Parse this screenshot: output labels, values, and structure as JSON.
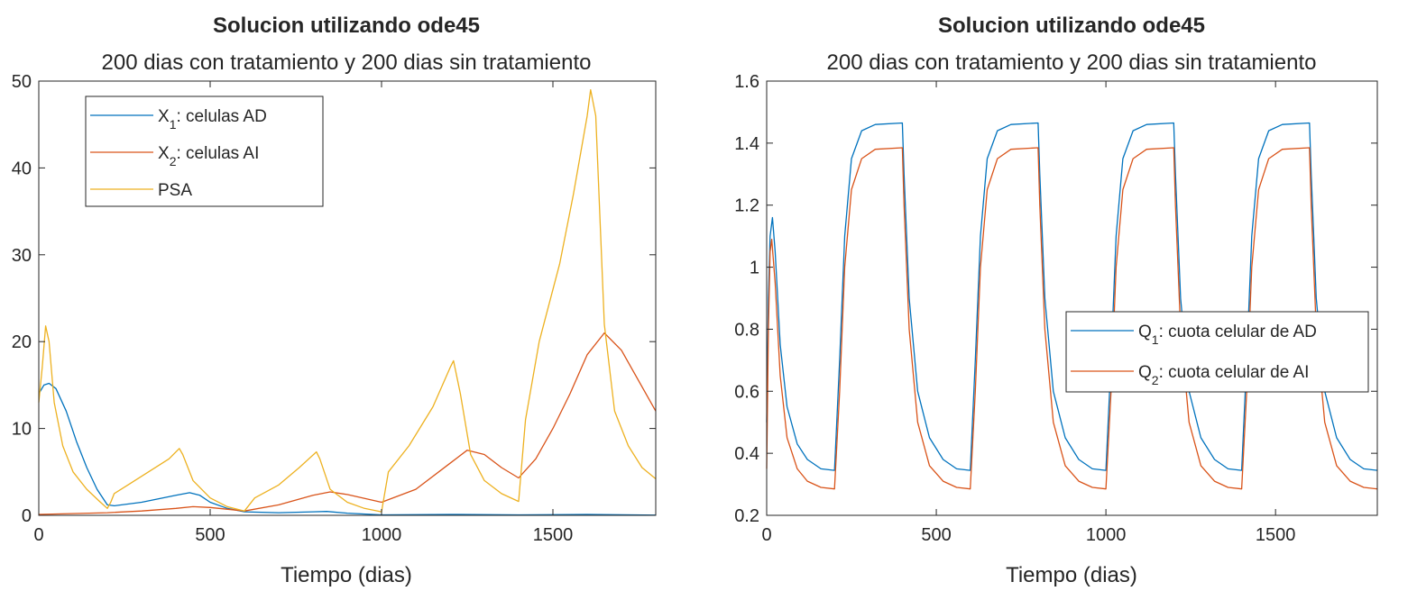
{
  "chart_data": [
    {
      "type": "line",
      "title": "Solucion utilizando ode45",
      "subtitle": "200 dias con tratamiento y 200 dias sin tratamiento",
      "xlabel": "Tiempo (dias)",
      "ylabel": "",
      "xlim": [
        0,
        1800
      ],
      "ylim": [
        0,
        50
      ],
      "xticks": [
        "0",
        "500",
        "1000",
        "1500"
      ],
      "yticks": [
        "0",
        "10",
        "20",
        "30",
        "40",
        "50"
      ],
      "grid": false,
      "legend_position": "top-left",
      "series": [
        {
          "legend_main": "X",
          "legend_sub": "1",
          "legend_rest": ": celulas AD",
          "color": "#0072BD",
          "points": [
            [
              0,
              14
            ],
            [
              15,
              15
            ],
            [
              30,
              15.2
            ],
            [
              50,
              14.6
            ],
            [
              80,
              12
            ],
            [
              110,
              8.5
            ],
            [
              140,
              5.5
            ],
            [
              170,
              3
            ],
            [
              200,
              1.2
            ],
            [
              220,
              1.1
            ],
            [
              300,
              1.5
            ],
            [
              400,
              2.3
            ],
            [
              440,
              2.6
            ],
            [
              470,
              2.3
            ],
            [
              500,
              1.5
            ],
            [
              550,
              0.8
            ],
            [
              600,
              0.4
            ],
            [
              700,
              0.3
            ],
            [
              800,
              0.4
            ],
            [
              840,
              0.45
            ],
            [
              900,
              0.25
            ],
            [
              1000,
              0.05
            ],
            [
              1200,
              0.1
            ],
            [
              1400,
              0.05
            ],
            [
              1600,
              0.1
            ],
            [
              1800,
              0.02
            ]
          ]
        },
        {
          "legend_main": "X",
          "legend_sub": "2",
          "legend_rest": ": celulas AI",
          "color": "#D95319",
          "points": [
            [
              0,
              0.1
            ],
            [
              200,
              0.3
            ],
            [
              300,
              0.5
            ],
            [
              400,
              0.8
            ],
            [
              450,
              1
            ],
            [
              500,
              0.9
            ],
            [
              600,
              0.5
            ],
            [
              700,
              1.2
            ],
            [
              800,
              2.3
            ],
            [
              850,
              2.7
            ],
            [
              900,
              2.4
            ],
            [
              1000,
              1.5
            ],
            [
              1100,
              3
            ],
            [
              1200,
              6
            ],
            [
              1250,
              7.5
            ],
            [
              1300,
              7
            ],
            [
              1350,
              5.5
            ],
            [
              1400,
              4.3
            ],
            [
              1450,
              6.5
            ],
            [
              1500,
              10
            ],
            [
              1550,
              14
            ],
            [
              1600,
              18.5
            ],
            [
              1650,
              21
            ],
            [
              1700,
              19
            ],
            [
              1750,
              15.5
            ],
            [
              1800,
              12
            ]
          ]
        },
        {
          "legend_main": "PSA",
          "legend_sub": "",
          "legend_rest": "",
          "color": "#EDB120",
          "points": [
            [
              0,
              13
            ],
            [
              10,
              17
            ],
            [
              20,
              21.8
            ],
            [
              30,
              20
            ],
            [
              45,
              13
            ],
            [
              70,
              8
            ],
            [
              100,
              5
            ],
            [
              140,
              3
            ],
            [
              180,
              1.5
            ],
            [
              200,
              0.8
            ],
            [
              210,
              1.5
            ],
            [
              220,
              2.5
            ],
            [
              260,
              3.5
            ],
            [
              320,
              5
            ],
            [
              380,
              6.5
            ],
            [
              410,
              7.7
            ],
            [
              420,
              7
            ],
            [
              450,
              4
            ],
            [
              500,
              2
            ],
            [
              550,
              1
            ],
            [
              600,
              0.5
            ],
            [
              630,
              2
            ],
            [
              700,
              3.5
            ],
            [
              760,
              5.5
            ],
            [
              810,
              7.3
            ],
            [
              820,
              6.5
            ],
            [
              850,
              3
            ],
            [
              900,
              1.5
            ],
            [
              950,
              0.8
            ],
            [
              1000,
              0.4
            ],
            [
              1020,
              5
            ],
            [
              1080,
              8
            ],
            [
              1150,
              12.5
            ],
            [
              1200,
              17
            ],
            [
              1210,
              17.8
            ],
            [
              1230,
              14
            ],
            [
              1260,
              7
            ],
            [
              1300,
              4
            ],
            [
              1350,
              2.5
            ],
            [
              1400,
              1.6
            ],
            [
              1420,
              11
            ],
            [
              1460,
              20
            ],
            [
              1520,
              29
            ],
            [
              1560,
              37
            ],
            [
              1600,
              46
            ],
            [
              1610,
              49
            ],
            [
              1625,
              46
            ],
            [
              1650,
              22
            ],
            [
              1680,
              12
            ],
            [
              1720,
              8
            ],
            [
              1760,
              5.5
            ],
            [
              1800,
              4.2
            ]
          ]
        }
      ]
    },
    {
      "type": "line",
      "title": "Solucion utilizando ode45",
      "subtitle": "200 dias con tratamiento y 200 dias sin tratamiento",
      "xlabel": "Tiempo (dias)",
      "ylabel": "",
      "xlim": [
        0,
        1800
      ],
      "ylim": [
        0.2,
        1.6
      ],
      "xticks": [
        "0",
        "500",
        "1000",
        "1500"
      ],
      "yticks": [
        "0.2",
        "0.4",
        "0.6",
        "0.8",
        "1",
        "1.2",
        "1.4",
        "1.6"
      ],
      "grid": false,
      "legend_position": "right",
      "series": [
        {
          "legend_main": "Q",
          "legend_sub": "1",
          "legend_rest": ": cuota celular de AD",
          "color": "#0072BD",
          "points": [
            [
              0,
              0.5
            ],
            [
              5,
              0.9
            ],
            [
              10,
              1.1
            ],
            [
              17,
              1.16
            ],
            [
              25,
              1.05
            ],
            [
              40,
              0.75
            ],
            [
              60,
              0.55
            ],
            [
              90,
              0.43
            ],
            [
              120,
              0.38
            ],
            [
              160,
              0.35
            ],
            [
              200,
              0.345
            ],
            [
              215,
              0.7
            ],
            [
              230,
              1.1
            ],
            [
              250,
              1.35
            ],
            [
              280,
              1.44
            ],
            [
              320,
              1.46
            ],
            [
              400,
              1.465
            ],
            [
              405,
              1.3
            ],
            [
              420,
              0.9
            ],
            [
              445,
              0.6
            ],
            [
              480,
              0.45
            ],
            [
              520,
              0.38
            ],
            [
              560,
              0.35
            ],
            [
              600,
              0.345
            ],
            [
              615,
              0.7
            ],
            [
              630,
              1.1
            ],
            [
              650,
              1.35
            ],
            [
              680,
              1.44
            ],
            [
              720,
              1.46
            ],
            [
              800,
              1.465
            ],
            [
              805,
              1.3
            ],
            [
              820,
              0.9
            ],
            [
              845,
              0.6
            ],
            [
              880,
              0.45
            ],
            [
              920,
              0.38
            ],
            [
              960,
              0.35
            ],
            [
              1000,
              0.345
            ],
            [
              1015,
              0.7
            ],
            [
              1030,
              1.1
            ],
            [
              1050,
              1.35
            ],
            [
              1080,
              1.44
            ],
            [
              1120,
              1.46
            ],
            [
              1200,
              1.465
            ],
            [
              1205,
              1.3
            ],
            [
              1220,
              0.9
            ],
            [
              1245,
              0.6
            ],
            [
              1280,
              0.45
            ],
            [
              1320,
              0.38
            ],
            [
              1360,
              0.35
            ],
            [
              1400,
              0.345
            ],
            [
              1415,
              0.7
            ],
            [
              1430,
              1.1
            ],
            [
              1450,
              1.35
            ],
            [
              1480,
              1.44
            ],
            [
              1520,
              1.46
            ],
            [
              1600,
              1.465
            ],
            [
              1605,
              1.3
            ],
            [
              1620,
              0.9
            ],
            [
              1645,
              0.6
            ],
            [
              1680,
              0.45
            ],
            [
              1720,
              0.38
            ],
            [
              1760,
              0.35
            ],
            [
              1800,
              0.345
            ]
          ]
        },
        {
          "legend_main": "Q",
          "legend_sub": "2",
          "legend_rest": ": cuota celular de AI",
          "color": "#D95319",
          "points": [
            [
              0,
              0.35
            ],
            [
              5,
              0.8
            ],
            [
              10,
              1.05
            ],
            [
              15,
              1.09
            ],
            [
              25,
              0.95
            ],
            [
              40,
              0.65
            ],
            [
              60,
              0.45
            ],
            [
              90,
              0.35
            ],
            [
              120,
              0.31
            ],
            [
              160,
              0.29
            ],
            [
              200,
              0.285
            ],
            [
              215,
              0.6
            ],
            [
              230,
              1
            ],
            [
              250,
              1.25
            ],
            [
              280,
              1.35
            ],
            [
              320,
              1.38
            ],
            [
              400,
              1.385
            ],
            [
              405,
              1.2
            ],
            [
              420,
              0.8
            ],
            [
              445,
              0.5
            ],
            [
              480,
              0.36
            ],
            [
              520,
              0.31
            ],
            [
              560,
              0.29
            ],
            [
              600,
              0.285
            ],
            [
              615,
              0.6
            ],
            [
              630,
              1
            ],
            [
              650,
              1.25
            ],
            [
              680,
              1.35
            ],
            [
              720,
              1.38
            ],
            [
              800,
              1.385
            ],
            [
              805,
              1.2
            ],
            [
              820,
              0.8
            ],
            [
              845,
              0.5
            ],
            [
              880,
              0.36
            ],
            [
              920,
              0.31
            ],
            [
              960,
              0.29
            ],
            [
              1000,
              0.285
            ],
            [
              1015,
              0.6
            ],
            [
              1030,
              1
            ],
            [
              1050,
              1.25
            ],
            [
              1080,
              1.35
            ],
            [
              1120,
              1.38
            ],
            [
              1200,
              1.385
            ],
            [
              1205,
              1.2
            ],
            [
              1220,
              0.8
            ],
            [
              1245,
              0.5
            ],
            [
              1280,
              0.36
            ],
            [
              1320,
              0.31
            ],
            [
              1360,
              0.29
            ],
            [
              1400,
              0.285
            ],
            [
              1415,
              0.6
            ],
            [
              1430,
              1
            ],
            [
              1450,
              1.25
            ],
            [
              1480,
              1.35
            ],
            [
              1520,
              1.38
            ],
            [
              1600,
              1.385
            ],
            [
              1605,
              1.2
            ],
            [
              1620,
              0.8
            ],
            [
              1645,
              0.5
            ],
            [
              1680,
              0.36
            ],
            [
              1720,
              0.31
            ],
            [
              1760,
              0.29
            ],
            [
              1800,
              0.285
            ]
          ]
        }
      ]
    }
  ]
}
